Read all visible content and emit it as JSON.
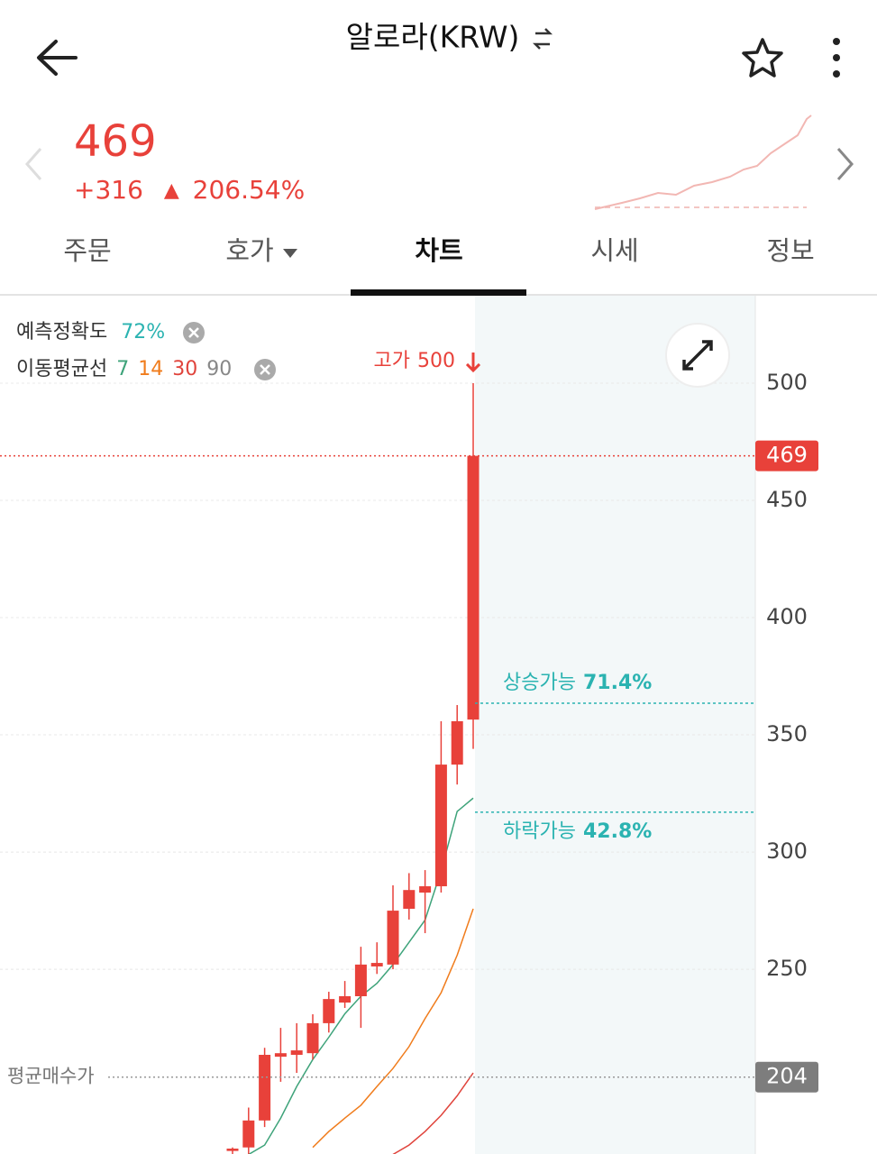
{
  "header": {
    "title": "알로라(KRW)"
  },
  "price": {
    "current": "469",
    "change": "+316",
    "arrow": "▲",
    "change_percent": "206.54%"
  },
  "tabs": [
    "주문",
    "호가",
    "차트",
    "시세",
    "정보"
  ],
  "active_tab": 2,
  "chart": {
    "type": "candlestick",
    "indicators": {
      "accuracy_label": "예측정확도",
      "accuracy": "72%",
      "ma_label": "이동평균선"
    },
    "moving_averages": [
      {
        "name": "7",
        "color": "#3ea37a",
        "values": [
          null,
          171,
          175,
          186.5,
          200,
          211.5,
          221,
          231,
          238.5,
          244,
          252,
          261.5,
          271,
          292,
          317.3,
          323
        ]
      },
      {
        "name": "14",
        "color": "#f07c1c",
        "values": [
          null,
          null,
          null,
          null,
          null,
          174,
          180.8,
          186.5,
          192,
          200,
          207.7,
          217,
          229,
          240,
          256,
          275.8
        ]
      },
      {
        "name": "30",
        "color": "#e0443c",
        "values": [
          null,
          null,
          null,
          null,
          null,
          null,
          null,
          null,
          null,
          null,
          171,
          175,
          180.8,
          187.7,
          196,
          205.8
        ]
      },
      {
        "name": "90",
        "color": "#888888",
        "values": []
      }
    ],
    "candles": [
      {
        "open": 172.5,
        "high": 174,
        "low": 171.2,
        "close": 173.5
      },
      {
        "open": 174,
        "high": 191,
        "low": 171.2,
        "close": 185.5
      },
      {
        "open": 185.5,
        "high": 216.5,
        "low": 182.7,
        "close": 213.5
      },
      {
        "open": 212.7,
        "high": 225,
        "low": 202,
        "close": 214.2
      },
      {
        "open": 213.5,
        "high": 227,
        "low": 205.8,
        "close": 215.4
      },
      {
        "open": 214.2,
        "high": 230.8,
        "low": 211.5,
        "close": 227
      },
      {
        "open": 227,
        "high": 240.4,
        "low": 223,
        "close": 237.3
      },
      {
        "open": 235.8,
        "high": 245,
        "low": 233.5,
        "close": 238.5
      },
      {
        "open": 238.5,
        "high": 259.6,
        "low": 225,
        "close": 252
      },
      {
        "open": 251.2,
        "high": 261.5,
        "low": 248,
        "close": 252.7
      },
      {
        "open": 252,
        "high": 285.8,
        "low": 250,
        "close": 275
      },
      {
        "open": 275.8,
        "high": 291,
        "low": 271.2,
        "close": 283.8
      },
      {
        "open": 282.7,
        "high": 292.3,
        "low": 265.4,
        "close": 285.4
      },
      {
        "open": 285.4,
        "high": 355.8,
        "low": 282.7,
        "close": 337.3
      },
      {
        "open": 337.3,
        "high": 362.7,
        "low": 328.8,
        "close": 355.8
      },
      {
        "open": 356.5,
        "high": 500,
        "low": 344,
        "close": 469
      }
    ],
    "candle_color": "#e8413a",
    "ylim": [
      171.2,
      537.3
    ],
    "yticks": [
      250,
      300,
      350,
      400,
      450,
      500
    ],
    "high_annotation": {
      "label": "고가",
      "value": 500
    },
    "current_price": 469,
    "average_buy": {
      "label": "평균매수가",
      "value": 204
    },
    "prediction": {
      "up": {
        "label": "상승가능",
        "percent": "71.4%",
        "level": 363.5
      },
      "down": {
        "label": "하락가능",
        "percent": "42.8%",
        "level": 317
      }
    }
  }
}
